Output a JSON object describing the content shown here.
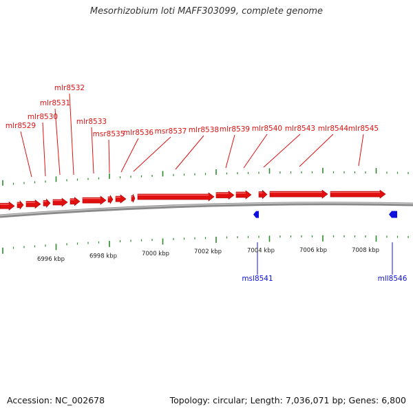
{
  "title": "Mesorhizobium loti MAFF303099, complete genome",
  "footer": {
    "accession": "Accession: NC_002678",
    "summary": "Topology: circular; Length: 7,036,071 bp; Genes: 6,800"
  },
  "colors": {
    "forward_gene": "#e01010",
    "reverse_gene": "#1010dd",
    "tick": "#2a8a2a",
    "backbone": "#8a8a8a"
  },
  "scale_labels": [
    "6996 kbp",
    "6998 kbp",
    "7000 kbp",
    "7002 kbp",
    "7004 kbp",
    "7006 kbp",
    "7008 kbp"
  ],
  "forward_genes": [
    "mlr8529",
    "mlr8530",
    "mlr8531",
    "mlr8532",
    "mlr8533",
    "msr8535",
    "mlr8536",
    "msr8537",
    "mlr8538",
    "mlr8539",
    "mlr8540",
    "mlr8543",
    "mlr8544",
    "mlr8545"
  ],
  "reverse_genes": [
    "msl8541",
    "mll8546"
  ]
}
